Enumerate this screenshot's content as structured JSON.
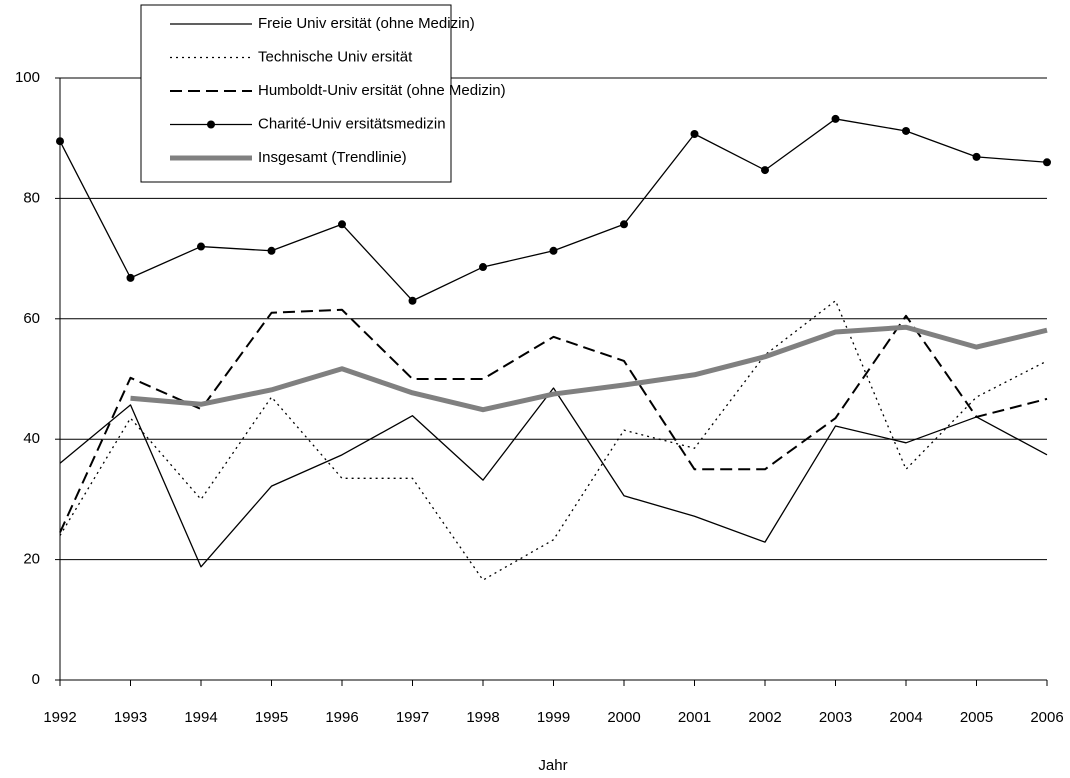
{
  "chart_data": {
    "type": "line",
    "x_label": "Jahr",
    "categories": [
      "1992",
      "1993",
      "1994",
      "1995",
      "1996",
      "1997",
      "1998",
      "1999",
      "2000",
      "2001",
      "2002",
      "2003",
      "2004",
      "2005",
      "2006"
    ],
    "ylim": [
      0,
      100
    ],
    "yticks": [
      0,
      20,
      40,
      60,
      80,
      100
    ],
    "grid": true,
    "legend": "top-left",
    "series": [
      {
        "name": "Freie Univ ersität (ohne Medizin)",
        "color": "#000000",
        "style": "solid",
        "values": [
          36,
          45.7,
          18.8,
          32.2,
          37.4,
          43.9,
          33.2,
          48.5,
          30.6,
          27.2,
          22.9,
          42.2,
          39.4,
          43.7,
          37.4
        ]
      },
      {
        "name": "Technische Univ ersität",
        "color": "#000000",
        "style": "dotted",
        "values": [
          24,
          43.5,
          30,
          47,
          33.5,
          33.5,
          16.6,
          23.3,
          41.5,
          38.5,
          54,
          63,
          35,
          47,
          53
        ]
      },
      {
        "name": "Humboldt-Univ ersität (ohne Medizin)",
        "color": "#000000",
        "style": "dashed",
        "values": [
          24.5,
          50.2,
          45,
          61,
          61.5,
          50,
          50,
          57,
          53,
          35,
          35,
          43.5,
          60.5,
          43.7,
          46.7
        ]
      },
      {
        "name": "Charité-Univ ersitätsmedizin",
        "color": "#000000",
        "style": "marker",
        "values": [
          89.5,
          66.8,
          72,
          71.3,
          75.7,
          63,
          68.6,
          71.3,
          75.7,
          90.7,
          84.7,
          93.2,
          91.2,
          86.9,
          86
        ]
      },
      {
        "name": "Insgesamt (Trendlinie)",
        "color": "#808080",
        "style": "thick",
        "values": [
          null,
          46.8,
          45.8,
          48.2,
          51.7,
          47.7,
          44.9,
          47.5,
          49,
          50.7,
          53.7,
          57.8,
          58.6,
          55.3,
          58.1
        ]
      }
    ]
  }
}
